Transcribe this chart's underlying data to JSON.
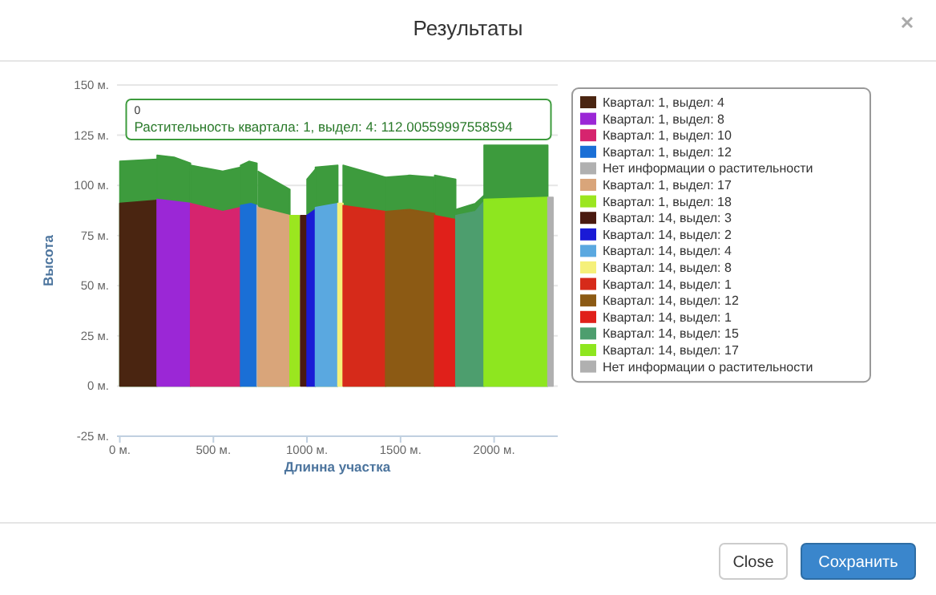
{
  "chart_data": {
    "type": "area",
    "title": "Результаты",
    "xlabel": "Длинна участка",
    "ylabel": "Высота",
    "xlim": [
      -15,
      2340
    ],
    "xticks": [
      {
        "value": 0,
        "label": "0 м."
      },
      {
        "value": 500,
        "label": "500 м."
      },
      {
        "value": 1000,
        "label": "1000 м."
      },
      {
        "value": 1500,
        "label": "1500 м."
      },
      {
        "value": 2000,
        "label": "2000 м."
      }
    ],
    "ylim": [
      -25,
      150
    ],
    "yticks": [
      {
        "value": -25,
        "label": "-25 м."
      },
      {
        "value": 0,
        "label": "0 м."
      },
      {
        "value": 25,
        "label": "25 м."
      },
      {
        "value": 50,
        "label": "50 м."
      },
      {
        "value": 75,
        "label": "75 м."
      },
      {
        "value": 100,
        "label": "100 м."
      },
      {
        "value": 125,
        "label": "125 м."
      },
      {
        "value": 150,
        "label": "150 м."
      }
    ],
    "grid": "y",
    "legend": "right",
    "annotations": [
      "0",
      "Растительность квартала: 1, выдел: 4: 112.00559997558594",
      "Close",
      "Сохранить"
    ],
    "series": [
      {
        "color": "#3d9b3d",
        "x": [
          0,
          199
        ],
        "values": [
          112.00559997558594,
          113
        ]
      },
      {
        "color": "#3d9b3d",
        "x": [
          199,
          290,
          378
        ],
        "values": [
          115,
          114,
          111
        ]
      },
      {
        "color": "#3d9b3d",
        "x": [
          378,
          550,
          645
        ],
        "values": [
          110,
          107,
          109
        ]
      },
      {
        "color": "#3d9b3d",
        "x": [
          645,
          690,
          733
        ],
        "values": [
          110,
          112,
          111
        ]
      },
      {
        "color": "#3d9b3d",
        "x": [
          739,
          909
        ],
        "values": [
          107,
          98
        ]
      },
      {
        "color": "#3d9b3d",
        "x": [
          1000,
          1045
        ],
        "values": [
          103,
          108
        ]
      },
      {
        "color": "#3d9b3d",
        "x": [
          1045,
          1165
        ],
        "values": [
          109,
          110
        ]
      },
      {
        "color": "#3d9b3d",
        "x": [
          1193,
          1420
        ],
        "values": [
          110,
          104
        ]
      },
      {
        "color": "#3d9b3d",
        "x": [
          1420,
          1550,
          1682
        ],
        "values": [
          104,
          105,
          104
        ]
      },
      {
        "color": "#3d9b3d",
        "x": [
          1682,
          1795
        ],
        "values": [
          105,
          103
        ]
      },
      {
        "color": "#3d9b3d",
        "x": [
          1795,
          1900,
          1946
        ],
        "values": [
          88,
          91,
          95
        ]
      },
      {
        "color": "#3d9b3d",
        "x": [
          1946,
          2287
        ],
        "values": [
          120,
          120
        ]
      },
      {
        "name": "Квартал: 1, выдел: 4",
        "color": "#4a2511",
        "x": [
          0,
          199
        ],
        "values": [
          91,
          92.5
        ]
      },
      {
        "name": "Квартал: 1, выдел: 8",
        "color": "#9b27d6",
        "x": [
          199,
          378
        ],
        "values": [
          93,
          91
        ]
      },
      {
        "name": "Квартал: 1, выдел: 10",
        "color": "#d6246e",
        "x": [
          378,
          550,
          645
        ],
        "values": [
          91,
          87,
          89
        ]
      },
      {
        "name": "Квартал: 1, выдел: 12",
        "color": "#1a6fd6",
        "x": [
          645,
          700,
          733
        ],
        "values": [
          90,
          91,
          90
        ]
      },
      {
        "name": "Нет информации о растительности",
        "color": "#b0b0b0",
        "x": [
          733,
          739
        ],
        "values": [
          90,
          89
        ]
      },
      {
        "name": "Квартал: 1, выдел: 17",
        "color": "#d9a57a",
        "x": [
          739,
          909
        ],
        "values": [
          89,
          85
        ]
      },
      {
        "name": "Квартал: 1, выдел: 18",
        "color": "#9be61f",
        "x": [
          909,
          960
        ],
        "values": [
          85,
          85
        ]
      },
      {
        "name": "Квартал: 14, выдел: 3",
        "color": "#4a1a10",
        "x": [
          966,
          1000
        ],
        "values": [
          85,
          85
        ]
      },
      {
        "name": "Квартал: 14, выдел: 2",
        "color": "#1a1ad6",
        "x": [
          1000,
          1045
        ],
        "values": [
          85,
          88
        ]
      },
      {
        "name": "Квартал: 14, выдел: 4",
        "color": "#5aa8e0",
        "x": [
          1045,
          1165
        ],
        "values": [
          89,
          91
        ]
      },
      {
        "name": "Квартал: 14, выдел: 8",
        "color": "#f5f07a",
        "x": [
          1165,
          1193
        ],
        "values": [
          91,
          91
        ]
      },
      {
        "name": "Квартал: 14, выдел: 1",
        "color": "#d62a1a",
        "x": [
          1193,
          1420
        ],
        "values": [
          90,
          87
        ]
      },
      {
        "name": "Квартал: 14, выдел: 12",
        "color": "#8c5a14",
        "x": [
          1420,
          1550,
          1682
        ],
        "values": [
          87,
          88,
          86
        ]
      },
      {
        "name": "Квартал: 14, выдел: 1",
        "color": "#e0201a",
        "x": [
          1682,
          1795
        ],
        "values": [
          85,
          83
        ]
      },
      {
        "name": "Квартал: 14, выдел: 15",
        "color": "#4d9e6e",
        "x": [
          1795,
          1900,
          1946
        ],
        "values": [
          85,
          87,
          92
        ]
      },
      {
        "name": "Квартал: 14, выдел: 17",
        "color": "#8ee61f",
        "x": [
          1946,
          2287
        ],
        "values": [
          93,
          94
        ]
      },
      {
        "name": "Нет информации о растительности",
        "color": "#b0b0b0",
        "x": [
          2287,
          2315
        ],
        "values": [
          94,
          94
        ]
      }
    ]
  }
}
